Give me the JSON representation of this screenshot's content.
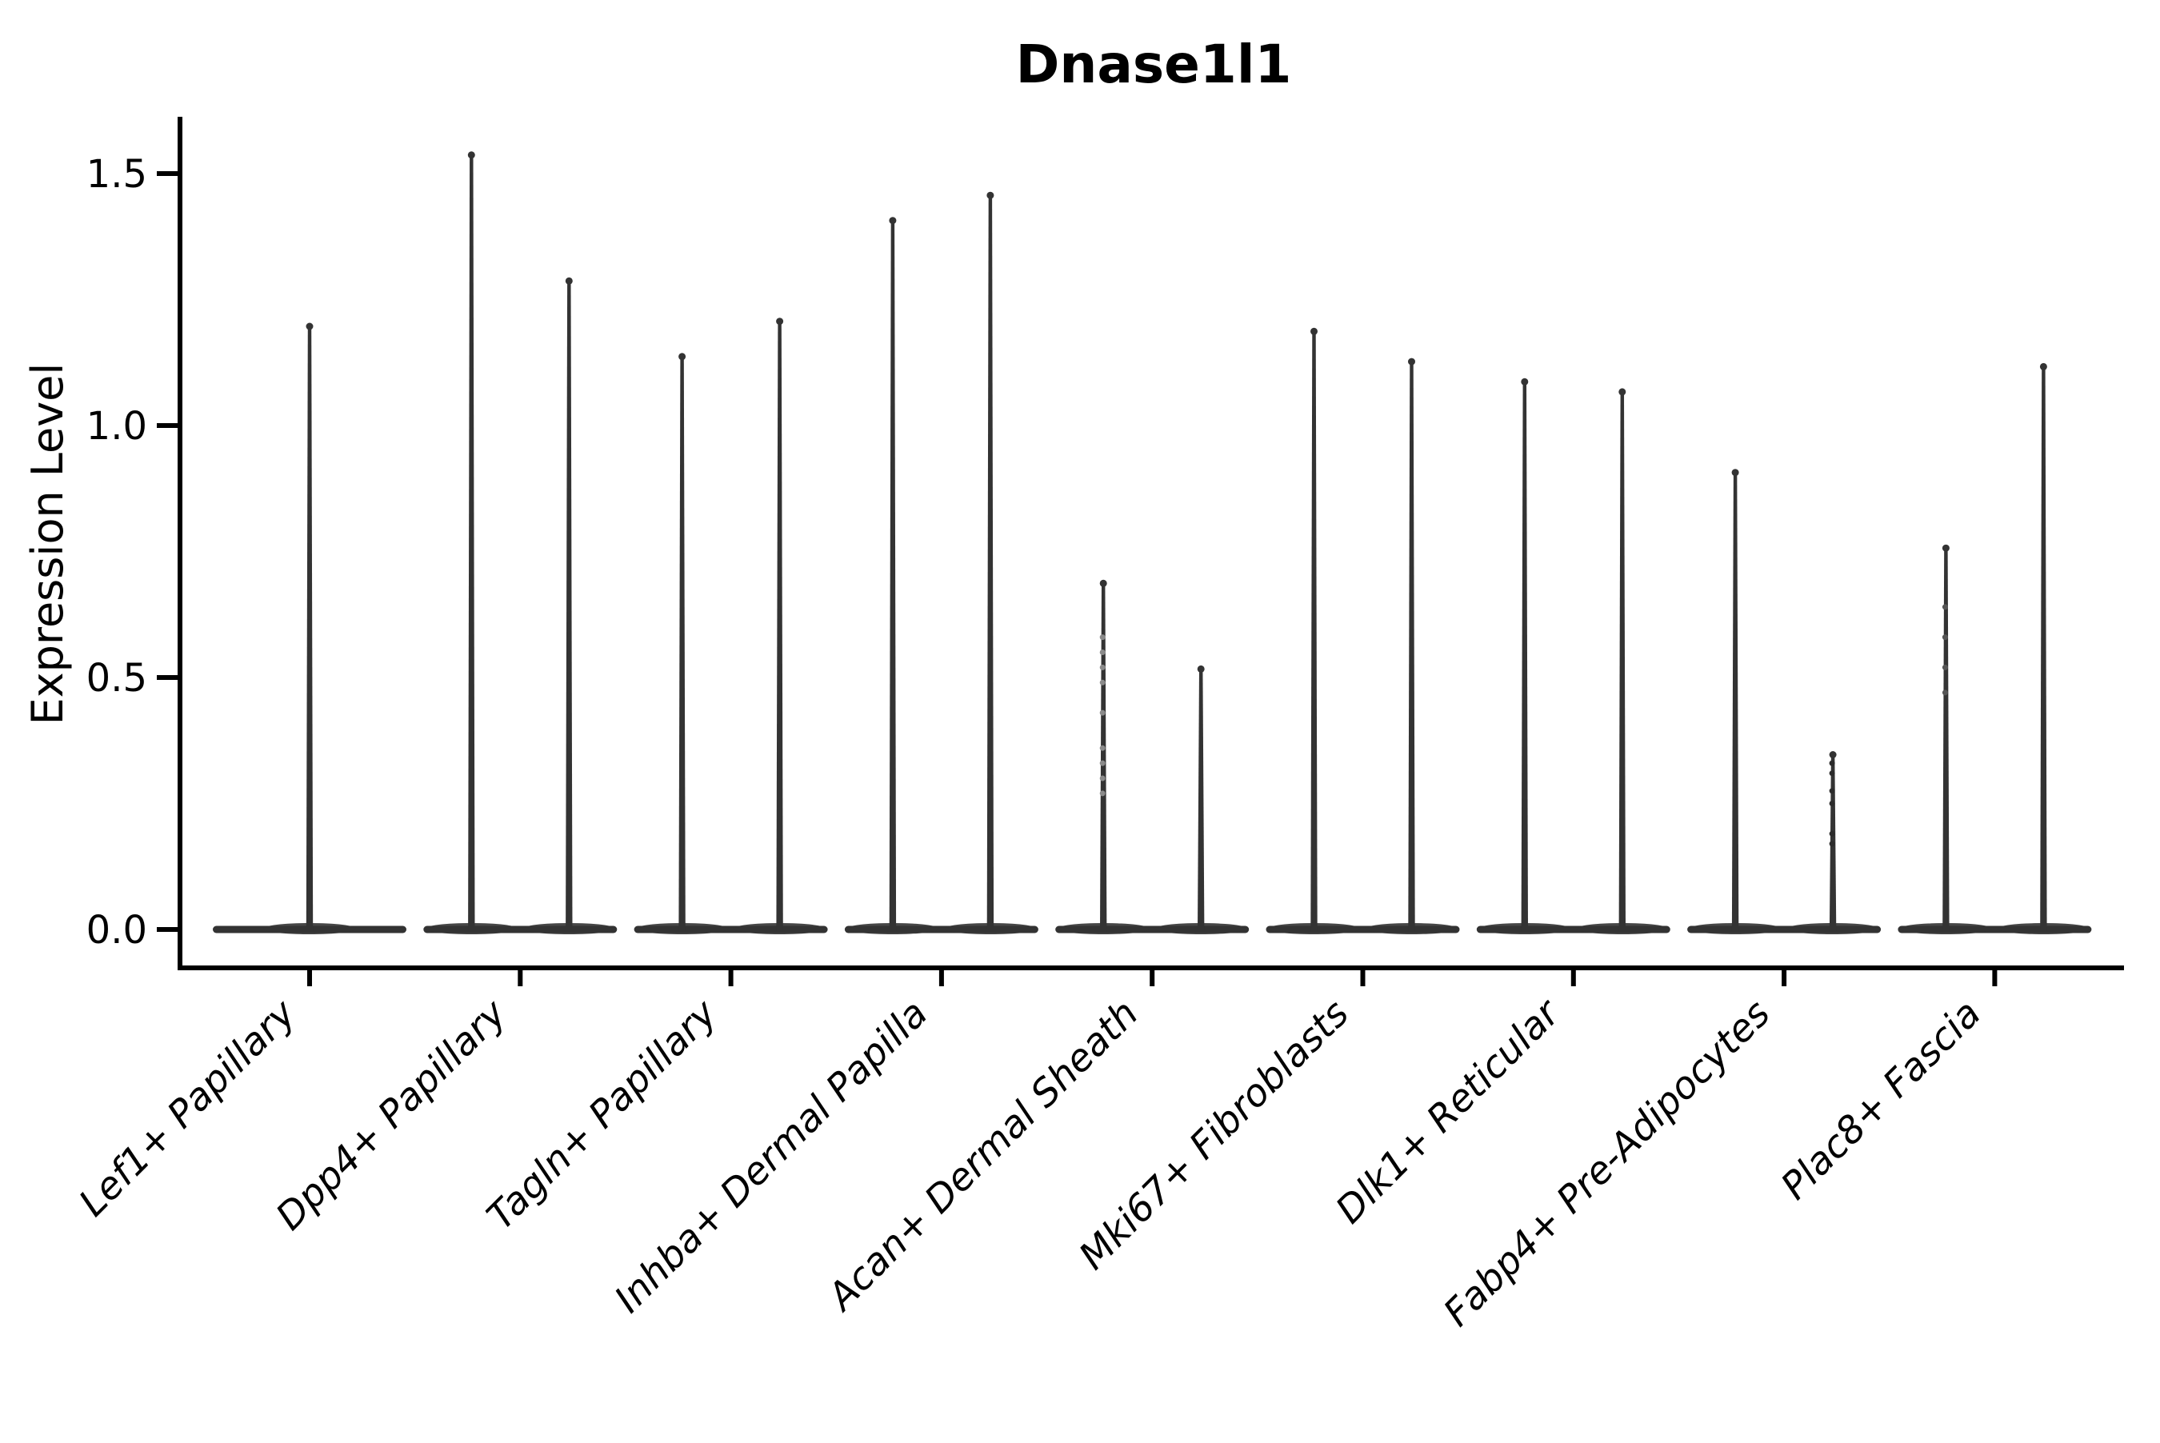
{
  "title": "Dnase1l1",
  "chart_data": {
    "type": "violin",
    "title": "Dnase1l1",
    "ylabel": "Expression Level",
    "xlabel": "",
    "ylim": [
      -0.08,
      1.61
    ],
    "grid": false,
    "legend": "none",
    "background_color": "#ffffff",
    "violin_color": "#333333",
    "axis_color": "#000000",
    "yticks": [
      {
        "label": "0.0",
        "value": 0.0
      },
      {
        "label": "0.5",
        "value": 0.5
      },
      {
        "label": "1.0",
        "value": 1.0
      },
      {
        "label": "1.5",
        "value": 1.5
      }
    ],
    "description": "Violin plot of Dnase1l1 expression; most cells at 0 (wide flat base), thin spikes reach the max expression per violin. Categories 2-9 contain two violins each (left/right), category 1 a single centered violin.",
    "categories": [
      {
        "label": "Lef1+ Papillary",
        "violins": [
          {
            "position": "center",
            "max": 1.2,
            "dots": [],
            "dot_color": null
          }
        ]
      },
      {
        "label": "Dpp4+ Papillary",
        "violins": [
          {
            "position": "left",
            "max": 1.54,
            "dots": [],
            "dot_color": null
          },
          {
            "position": "right",
            "max": 1.29,
            "dots": [],
            "dot_color": null
          }
        ]
      },
      {
        "label": "Tagln+ Papillary",
        "violins": [
          {
            "position": "left",
            "max": 1.14,
            "dots": [],
            "dot_color": null
          },
          {
            "position": "right",
            "max": 1.21,
            "dots": [],
            "dot_color": null
          }
        ]
      },
      {
        "label": "Inhba+ Dermal Papilla",
        "violins": [
          {
            "position": "left",
            "max": 1.41,
            "dots": [],
            "dot_color": null
          },
          {
            "position": "right",
            "max": 1.46,
            "dots": [],
            "dot_color": null
          }
        ]
      },
      {
        "label": "Acan+ Dermal Sheath",
        "violins": [
          {
            "position": "left",
            "max": 0.69,
            "dots": [
              0.58,
              0.55,
              0.52,
              0.49,
              0.43,
              0.36,
              0.33,
              0.3,
              0.27
            ],
            "dot_color": "#8a8a8a"
          },
          {
            "position": "right",
            "max": 0.52,
            "dots": [],
            "dot_color": null
          }
        ]
      },
      {
        "label": "Mki67+ Fibroblasts",
        "violins": [
          {
            "position": "left",
            "max": 1.19,
            "dots": [],
            "dot_color": null
          },
          {
            "position": "right",
            "max": 1.13,
            "dots": [],
            "dot_color": null
          }
        ]
      },
      {
        "label": "Dlk1+ Reticular",
        "violins": [
          {
            "position": "left",
            "max": 1.09,
            "dots": [],
            "dot_color": null
          },
          {
            "position": "right",
            "max": 1.07,
            "dots": [],
            "dot_color": null
          }
        ]
      },
      {
        "label": "Fabp4+ Pre-Adipocytes",
        "violins": [
          {
            "position": "left",
            "max": 0.91,
            "dots": [],
            "dot_color": null
          },
          {
            "position": "right",
            "max": 0.35,
            "dots": [
              0.33,
              0.31,
              0.275,
              0.25,
              0.19,
              0.17
            ],
            "dot_color": "#2b2b2b"
          }
        ]
      },
      {
        "label": "Plac8+ Fascia",
        "violins": [
          {
            "position": "left",
            "max": 0.76,
            "dots": [
              0.64,
              0.58,
              0.52,
              0.47
            ],
            "dot_color": "#555555"
          },
          {
            "position": "right",
            "max": 1.12,
            "dots": [],
            "dot_color": null
          }
        ]
      }
    ]
  }
}
